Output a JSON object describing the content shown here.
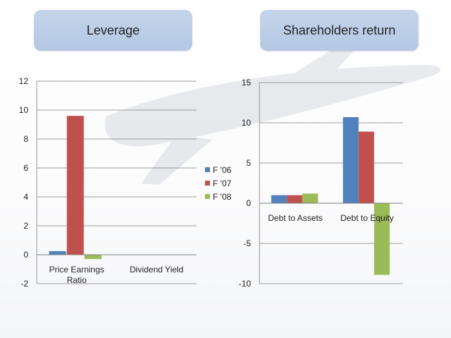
{
  "colors": {
    "series_0": "#4f81bd",
    "series_1": "#c0504d",
    "series_2": "#9bbb59",
    "title_box": "#b8cbe6",
    "grid": "#7f7f7f"
  },
  "chart_data": [
    {
      "type": "bar",
      "title": "Leverage",
      "categories": [
        "Price Earnings Ratio",
        "Dividend Yield"
      ],
      "category_lines": [
        [
          "Price Earnings",
          "Ratio"
        ],
        [
          "Dividend Yield"
        ]
      ],
      "series": [
        {
          "name": "F '06",
          "values": [
            0.25,
            0
          ]
        },
        {
          "name": "F '07",
          "values": [
            9.6,
            0
          ]
        },
        {
          "name": "F '08",
          "values": [
            -0.3,
            0
          ]
        }
      ],
      "ylim": [
        -2,
        12
      ],
      "yticks": [
        -2,
        0,
        2,
        4,
        6,
        8,
        10,
        12
      ],
      "grid": true,
      "legend": "right"
    },
    {
      "type": "bar",
      "title": "Shareholders return",
      "categories": [
        "Debt to Assets",
        "Debt to Equity"
      ],
      "category_lines": [
        [
          "Debt to Assets"
        ],
        [
          "Debt to Equity"
        ]
      ],
      "series": [
        {
          "name": "F '06",
          "values": [
            1.0,
            10.7
          ]
        },
        {
          "name": "F '07",
          "values": [
            1.0,
            8.9
          ]
        },
        {
          "name": "F '08",
          "values": [
            1.2,
            -8.9
          ]
        }
      ],
      "ylim": [
        -10,
        15
      ],
      "yticks": [
        -10,
        -5,
        0,
        5,
        10,
        15
      ],
      "grid": true,
      "legend": "none"
    }
  ]
}
